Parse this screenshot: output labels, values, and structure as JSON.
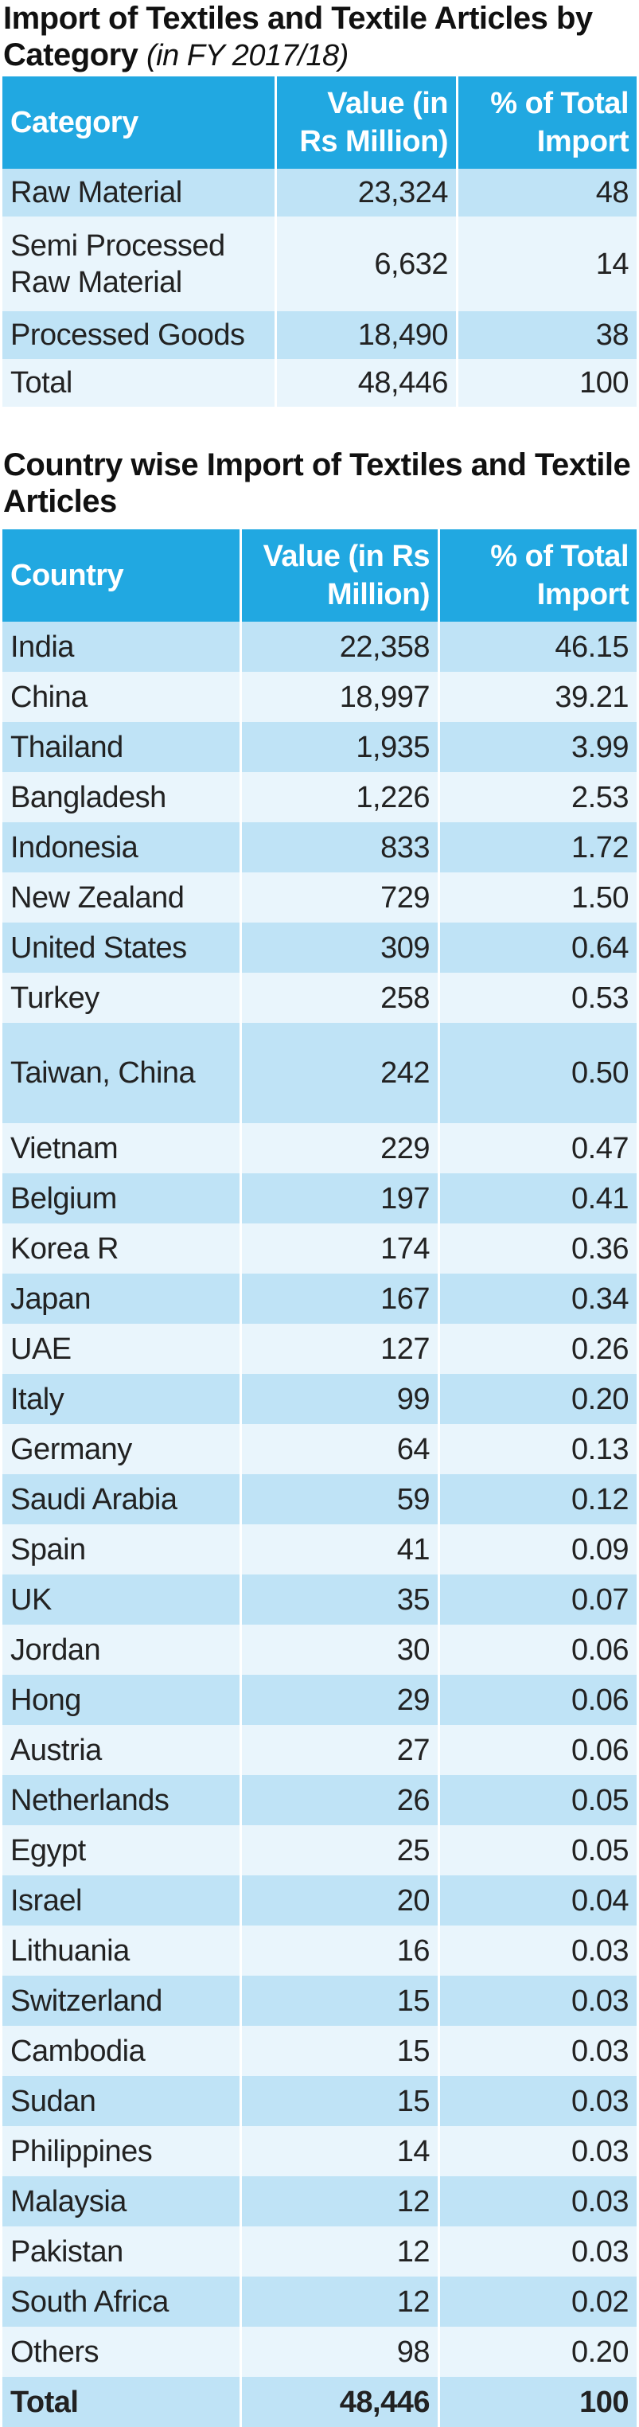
{
  "category_table": {
    "title": "Import of Textiles and Textile Articles by Category",
    "title_note": "(in FY 2017/18)",
    "columns": [
      "Category",
      "Value (in Rs Million)",
      "% of Total Import"
    ],
    "rows": [
      [
        "Raw Material",
        "23,324",
        "48"
      ],
      [
        "Semi Processed Raw Material",
        "6,632",
        "14"
      ],
      [
        "Processed Goods",
        "18,490",
        "38"
      ],
      [
        "Total",
        "48,446",
        "100"
      ]
    ]
  },
  "country_table": {
    "title": "Country wise Import of Textiles and Textile Articles",
    "columns": [
      "Country",
      "Value (in Rs Million)",
      "% of Total Import"
    ],
    "rows": [
      [
        "India",
        "22,358",
        "46.15"
      ],
      [
        "China",
        "18,997",
        "39.21"
      ],
      [
        "Thailand",
        "1,935",
        "3.99"
      ],
      [
        "Bangladesh",
        "1,226",
        "2.53"
      ],
      [
        "Indonesia",
        "833",
        "1.72"
      ],
      [
        "New Zealand",
        "729",
        "1.50"
      ],
      [
        "United States",
        "309",
        "0.64"
      ],
      [
        "Turkey",
        "258",
        "0.53"
      ],
      [
        "Taiwan, China",
        "242",
        "0.50"
      ],
      [
        "Vietnam",
        "229",
        "0.47"
      ],
      [
        "Belgium",
        "197",
        "0.41"
      ],
      [
        "Korea R",
        "174",
        "0.36"
      ],
      [
        "Japan",
        "167",
        "0.34"
      ],
      [
        "UAE",
        "127",
        "0.26"
      ],
      [
        "Italy",
        "99",
        "0.20"
      ],
      [
        "Germany",
        "64",
        "0.13"
      ],
      [
        "Saudi Arabia",
        "59",
        "0.12"
      ],
      [
        "Spain",
        "41",
        "0.09"
      ],
      [
        "UK",
        "35",
        "0.07"
      ],
      [
        "Jordan",
        "30",
        "0.06"
      ],
      [
        "Hong",
        "29",
        "0.06"
      ],
      [
        "Austria",
        "27",
        "0.06"
      ],
      [
        "Netherlands",
        "26",
        "0.05"
      ],
      [
        "Egypt",
        "25",
        "0.05"
      ],
      [
        "Israel",
        "20",
        "0.04"
      ],
      [
        "Lithuania",
        "16",
        "0.03"
      ],
      [
        "Switzerland",
        "15",
        "0.03"
      ],
      [
        "Cambodia",
        "15",
        "0.03"
      ],
      [
        "Sudan",
        "15",
        "0.03"
      ],
      [
        "Philippines",
        "14",
        "0.03"
      ],
      [
        "Malaysia",
        "12",
        "0.03"
      ],
      [
        "Pakistan",
        "12",
        "0.03"
      ],
      [
        "South Africa",
        "12",
        "0.02"
      ],
      [
        "Others",
        "98",
        "0.20"
      ]
    ],
    "total": [
      "Total",
      "48,446",
      "100"
    ]
  }
}
